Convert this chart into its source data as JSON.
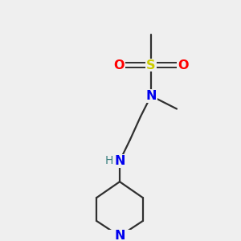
{
  "bg_color": "#efefef",
  "atom_colors": {
    "N": "#0000ee",
    "S": "#cccc00",
    "O": "#ff0000",
    "H": "#3a8080"
  },
  "figsize": [
    3.0,
    3.0
  ],
  "dpi": 100,
  "bond_color": "#303030",
  "bond_lw": 1.6,
  "font_size_atom": 11.5,
  "font_size_h": 10.0
}
